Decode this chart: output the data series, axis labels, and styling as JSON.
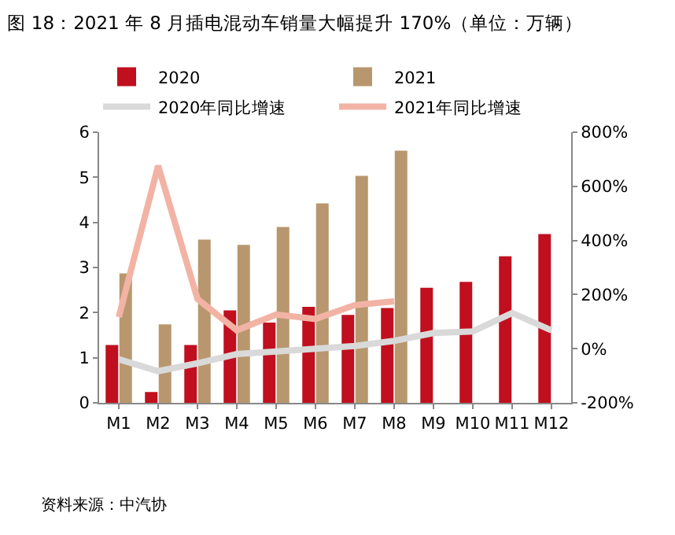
{
  "chart_data": {
    "type": "bar",
    "title": "图 18：2021 年 8 月插电混动车销量大幅提升 170%（单位：万辆）",
    "categories": [
      "M1",
      "M2",
      "M3",
      "M4",
      "M5",
      "M6",
      "M7",
      "M8",
      "M9",
      "M10",
      "M11",
      "M12"
    ],
    "series": [
      {
        "name": "2020",
        "color": "#c00f1e",
        "values": [
          1.28,
          0.24,
          1.28,
          2.05,
          1.78,
          2.13,
          1.95,
          2.1,
          2.55,
          2.68,
          3.25,
          3.74
        ]
      },
      {
        "name": "2021",
        "color": "#b8976e",
        "values": [
          2.87,
          1.74,
          3.62,
          3.5,
          3.9,
          4.42,
          5.03,
          5.59,
          null,
          null,
          null,
          null
        ]
      },
      {
        "name": "2020年同比增速",
        "type": "line",
        "axis": "y2",
        "color": "#d9d9d9",
        "values": [
          -39,
          -83,
          -54,
          -20,
          -10,
          0,
          10,
          29,
          58,
          64,
          132,
          68
        ]
      },
      {
        "name": "2021年同比增速",
        "type": "line",
        "axis": "y2",
        "color": "#f2b3a5",
        "values": [
          117,
          676,
          184,
          68,
          126,
          110,
          161,
          175,
          null,
          null,
          null,
          null
        ]
      }
    ],
    "ylim": [
      0,
      6
    ],
    "yticks": [
      0,
      1,
      2,
      3,
      4,
      5,
      6
    ],
    "y2lim": [
      -200,
      800
    ],
    "y2ticks": [
      {
        "value": -200,
        "label": "-200%"
      },
      {
        "value": 0,
        "label": "0%"
      },
      {
        "value": 200,
        "label": "200%"
      },
      {
        "value": 400,
        "label": "400%"
      },
      {
        "value": 600,
        "label": "600%"
      },
      {
        "value": 800,
        "label": "800%"
      }
    ],
    "grid": false,
    "legend": "top",
    "line_style": "solid",
    "annotations": [
      "资料来源：中汽协"
    ]
  }
}
